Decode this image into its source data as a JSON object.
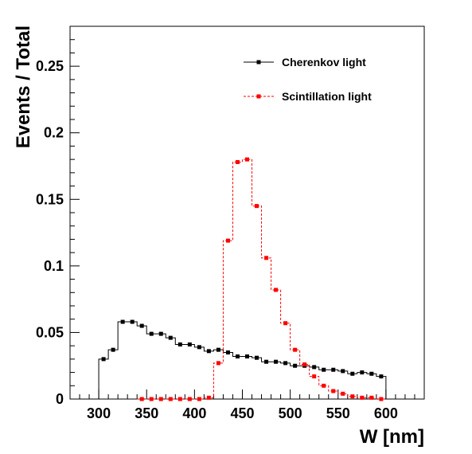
{
  "chart_data": {
    "type": "line",
    "step": true,
    "xlabel": "W [nm]",
    "ylabel": "Events / Total",
    "xlim": [
      270,
      640
    ],
    "ylim": [
      0,
      0.28
    ],
    "xticks": [
      "300",
      "350",
      "400",
      "450",
      "500",
      "550",
      "600"
    ],
    "yticks": [
      "0",
      "0.05",
      "0.1",
      "0.15",
      "0.2",
      "0.25"
    ],
    "legend_position": "top-right",
    "bin_width": 10,
    "series": [
      {
        "name": "Cherenkov light",
        "color": "#000000",
        "line_style": "solid",
        "marker": "square",
        "x": [
          305,
          315,
          325,
          335,
          345,
          355,
          365,
          375,
          385,
          395,
          405,
          415,
          425,
          435,
          445,
          455,
          465,
          475,
          485,
          495,
          505,
          515,
          525,
          535,
          545,
          555,
          565,
          575,
          585,
          595
        ],
        "y": [
          0.03,
          0.037,
          0.058,
          0.058,
          0.055,
          0.049,
          0.049,
          0.046,
          0.041,
          0.041,
          0.039,
          0.036,
          0.037,
          0.035,
          0.032,
          0.032,
          0.031,
          0.028,
          0.028,
          0.027,
          0.025,
          0.025,
          0.024,
          0.022,
          0.022,
          0.021,
          0.019,
          0.02,
          0.019,
          0.017
        ]
      },
      {
        "name": "Scintillation light",
        "color": "#ff0000",
        "line_style": "dashed",
        "marker": "square",
        "x": [
          345,
          355,
          365,
          375,
          385,
          395,
          405,
          415,
          425,
          435,
          445,
          455,
          465,
          475,
          485,
          495,
          505,
          515,
          525,
          535,
          545,
          555,
          565,
          575,
          585,
          595
        ],
        "y": [
          0,
          0,
          0,
          0,
          0,
          0,
          0,
          0.001,
          0.027,
          0.119,
          0.178,
          0.18,
          0.145,
          0.106,
          0.082,
          0.057,
          0.037,
          0.026,
          0.017,
          0.01,
          0.006,
          0.004,
          0.002,
          0.001,
          0.001,
          0
        ]
      }
    ]
  }
}
